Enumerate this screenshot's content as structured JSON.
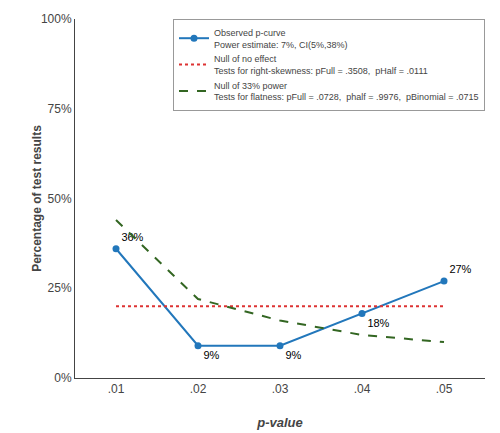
{
  "chart_data": {
    "type": "line",
    "xlabel": "p-value",
    "ylabel": "Percentage of test results",
    "x": [
      0.01,
      0.02,
      0.03,
      0.04,
      0.05
    ],
    "series": [
      {
        "name": "Observed p-curve\nPower estimate: 7%, CI(5%,38%)",
        "color": "#2277bb",
        "marker": "circle",
        "line_style": "solid",
        "values": [
          0.36,
          0.09,
          0.09,
          0.18,
          0.27
        ],
        "value_labels": [
          "36%",
          "9%",
          "9%",
          "18%",
          "27%"
        ]
      },
      {
        "name": "Null of no effect\nTests for right-skewness: pFull = .3508,  pHalf = .0111",
        "color": "#dd3333",
        "line_style": "dotted",
        "values": [
          0.2,
          0.2,
          0.2,
          0.2,
          0.2
        ]
      },
      {
        "name": "Null of 33% power\nTests for flatness: pFull = .0728,  phalf = .9976,  pBinomial = .0715",
        "color": "#336622",
        "line_style": "dashed",
        "values": [
          0.44,
          0.22,
          0.16,
          0.12,
          0.1
        ]
      }
    ],
    "xlim": [
      0.005,
      0.055
    ],
    "xticks": [
      {
        "value": 0.01,
        "label": ".01"
      },
      {
        "value": 0.02,
        "label": ".02"
      },
      {
        "value": 0.03,
        "label": ".03"
      },
      {
        "value": 0.04,
        "label": ".04"
      },
      {
        "value": 0.05,
        "label": ".05"
      }
    ],
    "ylim": [
      0,
      1.0
    ],
    "yticks": [
      {
        "value": 0,
        "label": "0%"
      },
      {
        "value": 0.25,
        "label": "25%"
      },
      {
        "value": 0.5,
        "label": "50%"
      },
      {
        "value": 0.75,
        "label": "75%"
      },
      {
        "value": 1.0,
        "label": "100%"
      }
    ],
    "grid": false,
    "legend": "upper right",
    "data_labels": true
  }
}
